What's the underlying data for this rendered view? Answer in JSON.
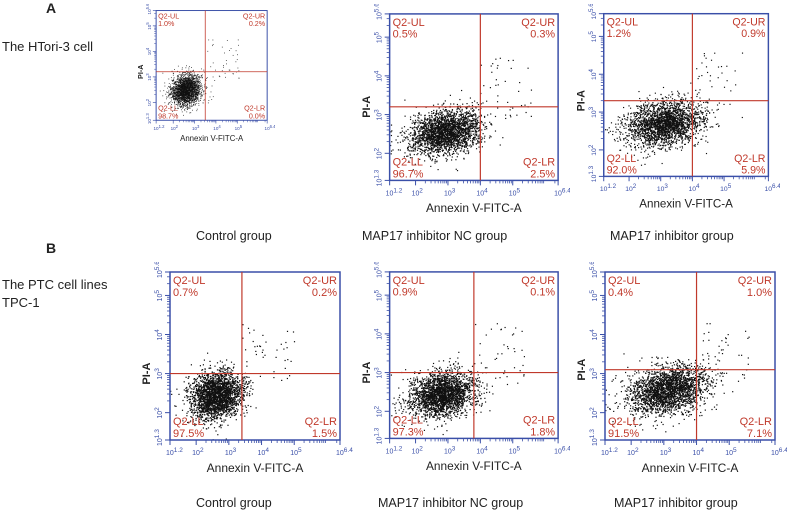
{
  "figure": {
    "panel_a_letter": "A",
    "panel_b_letter": "B",
    "row_a_label": "The HTori-3 cell",
    "row_b_label_line1": "The PTC cell lines",
    "row_b_label_line2": "TPC-1",
    "x_axis_label": "Annexin V-FITC-A",
    "y_axis_label": "PI-A",
    "x_ticks": [
      {
        "base": "10",
        "exp": "1.2"
      },
      {
        "base": "10",
        "exp": "2"
      },
      {
        "base": "10",
        "exp": "3"
      },
      {
        "base": "10",
        "exp": "4"
      },
      {
        "base": "10",
        "exp": "5"
      },
      {
        "base": "10",
        "exp": "6.4"
      }
    ],
    "y_ticks": [
      {
        "base": "10",
        "exp": "1.3"
      },
      {
        "base": "10",
        "exp": "2"
      },
      {
        "base": "10",
        "exp": "3"
      },
      {
        "base": "10",
        "exp": "4"
      },
      {
        "base": "10",
        "exp": "5"
      },
      {
        "base": "10",
        "exp": "5.6"
      }
    ],
    "colors": {
      "axis": "#3a4fa8",
      "gate": "#c0392b",
      "quad_text": "#c0392b",
      "dots": "#111111"
    }
  },
  "chart_data": [
    {
      "type": "scatter",
      "group": "Control group",
      "row": "The HTori-3 cell",
      "quadrants": {
        "UL": {
          "label": "Q2-UL",
          "value": "1.0%"
        },
        "UR": {
          "label": "Q2-UR",
          "value": "0.2%"
        },
        "LL": {
          "label": "Q2-LL",
          "value": "98.7%"
        },
        "LR": {
          "label": "Q2-LR",
          "value": "0.0%"
        }
      },
      "xlabel": "Annexin V-FITC-A",
      "ylabel": "PI-A",
      "xlim": [
        1.2,
        6.4
      ],
      "ylim": [
        1.3,
        5.6
      ],
      "gate": {
        "x": 3.5,
        "y": 3.2
      },
      "cloud": {
        "cx": 2.6,
        "cy": 2.5,
        "sx": 0.35,
        "sy": 0.3
      }
    },
    {
      "type": "scatter",
      "group": "MAP17 inhibitor NC group",
      "row": "The HTori-3 cell",
      "quadrants": {
        "UL": {
          "label": "Q2-UL",
          "value": "0.5%"
        },
        "UR": {
          "label": "Q2-UR",
          "value": "0.3%"
        },
        "LL": {
          "label": "Q2-LL",
          "value": "96.7%"
        },
        "LR": {
          "label": "Q2-LR",
          "value": "2.5%"
        }
      },
      "xlabel": "Annexin V-FITC-A",
      "ylabel": "PI-A",
      "xlim": [
        1.2,
        6.4
      ],
      "ylim": [
        1.3,
        5.6
      ],
      "gate": {
        "x": 4.0,
        "y": 3.2
      },
      "cloud": {
        "cx": 2.9,
        "cy": 2.55,
        "sx": 0.55,
        "sy": 0.28
      }
    },
    {
      "type": "scatter",
      "group": "MAP17 inhibitor group",
      "row": "The HTori-3 cell",
      "quadrants": {
        "UL": {
          "label": "Q2-UL",
          "value": "1.2%"
        },
        "UR": {
          "label": "Q2-UR",
          "value": "0.9%"
        },
        "LL": {
          "label": "Q2-LL",
          "value": "92.0%"
        },
        "LR": {
          "label": "Q2-LR",
          "value": "5.9%"
        }
      },
      "xlabel": "Annexin V-FITC-A",
      "ylabel": "PI-A",
      "xlim": [
        1.2,
        6.4
      ],
      "ylim": [
        1.3,
        5.6
      ],
      "gate": {
        "x": 4.0,
        "y": 3.3
      },
      "cloud": {
        "cx": 3.1,
        "cy": 2.7,
        "sx": 0.6,
        "sy": 0.3
      }
    },
    {
      "type": "scatter",
      "group": "Control group",
      "row": "The PTC cell lines TPC-1",
      "quadrants": {
        "UL": {
          "label": "Q2-UL",
          "value": "0.7%"
        },
        "UR": {
          "label": "Q2-UR",
          "value": "0.2%"
        },
        "LL": {
          "label": "Q2-LL",
          "value": "97.5%"
        },
        "LR": {
          "label": "Q2-LR",
          "value": "1.5%"
        }
      },
      "xlabel": "Annexin V-FITC-A",
      "ylabel": "PI-A",
      "xlim": [
        1.2,
        6.4
      ],
      "ylim": [
        1.3,
        5.6
      ],
      "gate": {
        "x": 3.4,
        "y": 3.0
      },
      "cloud": {
        "cx": 2.6,
        "cy": 2.45,
        "sx": 0.4,
        "sy": 0.3
      }
    },
    {
      "type": "scatter",
      "group": "MAP17 inhibitor NC group",
      "row": "The PTC cell lines TPC-1",
      "quadrants": {
        "UL": {
          "label": "Q2-UL",
          "value": "0.9%"
        },
        "UR": {
          "label": "Q2-UR",
          "value": "0.1%"
        },
        "LL": {
          "label": "Q2-LL",
          "value": "97.3%"
        },
        "LR": {
          "label": "Q2-LR",
          "value": "1.8%"
        }
      },
      "xlabel": "Annexin V-FITC-A",
      "ylabel": "PI-A",
      "xlim": [
        1.2,
        6.4
      ],
      "ylim": [
        1.3,
        5.6
      ],
      "gate": {
        "x": 3.8,
        "y": 3.0
      },
      "cloud": {
        "cx": 2.8,
        "cy": 2.45,
        "sx": 0.5,
        "sy": 0.28
      }
    },
    {
      "type": "scatter",
      "group": "MAP17 inhibitor group",
      "row": "The PTC cell lines TPC-1",
      "quadrants": {
        "UL": {
          "label": "Q2-UL",
          "value": "0.4%"
        },
        "UR": {
          "label": "Q2-UR",
          "value": "1.0%"
        },
        "LL": {
          "label": "Q2-LL",
          "value": "91.5%"
        },
        "LR": {
          "label": "Q2-LR",
          "value": "7.1%"
        }
      },
      "xlabel": "Annexin V-FITC-A",
      "ylabel": "PI-A",
      "xlim": [
        1.2,
        6.4
      ],
      "ylim": [
        1.3,
        5.6
      ],
      "gate": {
        "x": 4.0,
        "y": 3.1
      },
      "cloud": {
        "cx": 3.1,
        "cy": 2.6,
        "sx": 0.6,
        "sy": 0.3
      }
    }
  ]
}
